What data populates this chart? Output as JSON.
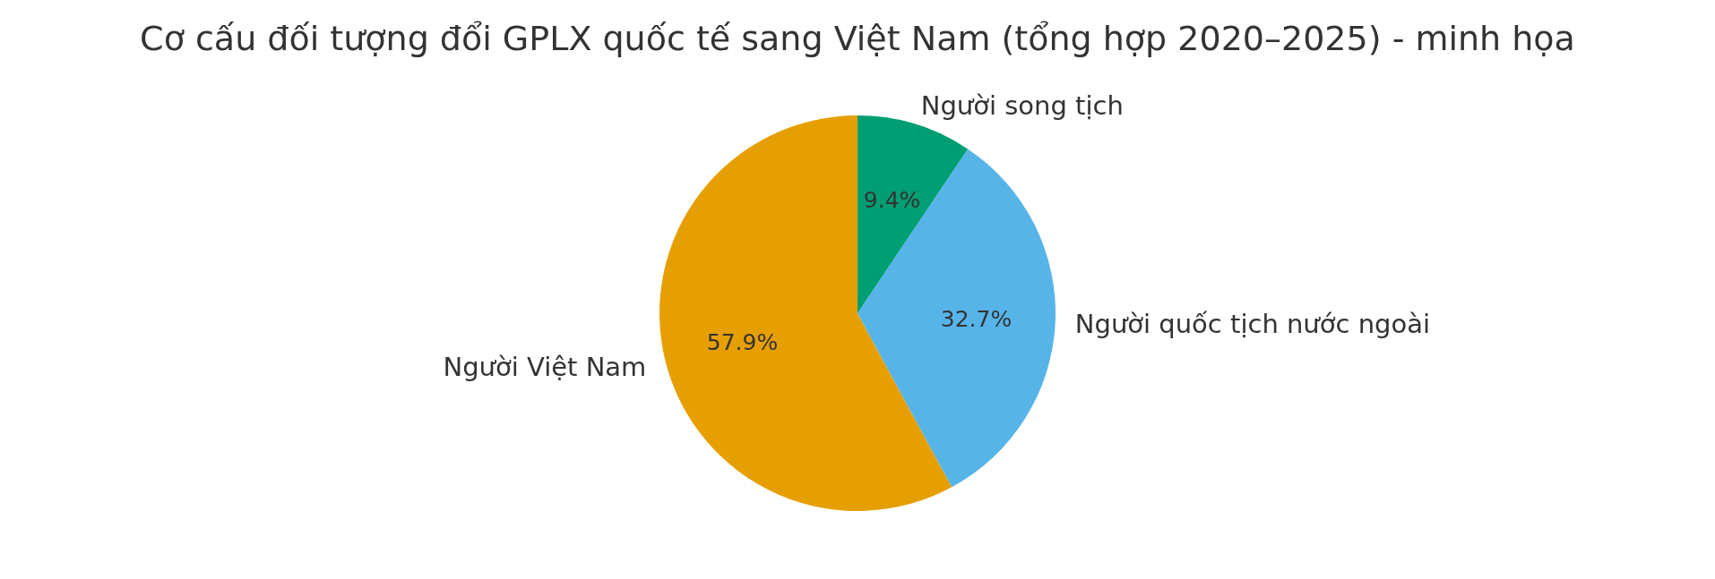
{
  "chart_data": {
    "type": "pie",
    "title": "Cơ cấu đối tượng đổi GPLX quốc tế sang Việt Nam (tổng hợp 2020–2025) - minh họa",
    "categories": [
      "Người Việt Nam",
      "Người quốc tịch nước ngoài",
      "Người song tịch"
    ],
    "values": [
      57.9,
      32.7,
      9.4
    ],
    "colors": [
      "#e69f00",
      "#56b4e9",
      "#009e73"
    ],
    "value_labels": [
      "57.9%",
      "32.7%",
      "9.4%"
    ],
    "legend": false
  }
}
